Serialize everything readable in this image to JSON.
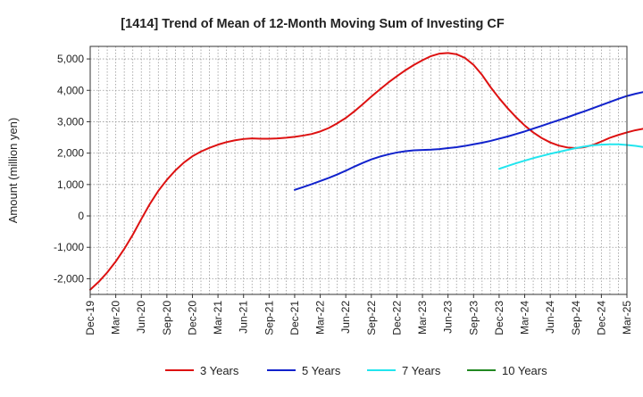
{
  "chart_data": {
    "type": "line",
    "title": "[1414]  Trend of Mean of 12-Month Moving Sum of Investing CF",
    "xlabel": "",
    "ylabel": "Amount (million yen)",
    "ylim": [
      -2500,
      5400
    ],
    "yticks": [
      -2000,
      -1000,
      0,
      1000,
      2000,
      3000,
      4000,
      5000
    ],
    "ytick_labels": [
      "-2,000",
      "-1,000",
      "0",
      "1,000",
      "2,000",
      "3,000",
      "4,000",
      "5,000"
    ],
    "x_tick_labels": [
      "Dec-19",
      "Mar-20",
      "Jun-20",
      "Sep-20",
      "Dec-20",
      "Mar-21",
      "Jun-21",
      "Sep-21",
      "Dec-21",
      "Mar-22",
      "Jun-22",
      "Sep-22",
      "Dec-22",
      "Mar-23",
      "Jun-23",
      "Sep-23",
      "Dec-23",
      "Mar-24",
      "Jun-24",
      "Sep-24",
      "Dec-24",
      "Mar-25"
    ],
    "grid": true,
    "legend_position": "bottom",
    "series": [
      {
        "name": "3 Years",
        "color": "#dd1111",
        "start_index": 0,
        "values": [
          -2350,
          -2100,
          -1800,
          -1450,
          -1050,
          -600,
          -100,
          380,
          800,
          1150,
          1450,
          1700,
          1900,
          2050,
          2170,
          2270,
          2350,
          2410,
          2450,
          2470,
          2460,
          2460,
          2470,
          2490,
          2520,
          2560,
          2610,
          2690,
          2800,
          2950,
          3120,
          3330,
          3560,
          3800,
          4030,
          4250,
          4450,
          4640,
          4810,
          4960,
          5090,
          5170,
          5190,
          5150,
          5030,
          4810,
          4490,
          4100,
          3750,
          3430,
          3140,
          2880,
          2660,
          2480,
          2340,
          2240,
          2180,
          2160,
          2190,
          2260,
          2370,
          2490,
          2580,
          2660,
          2730,
          2780,
          2820,
          2850,
          2870
        ]
      },
      {
        "name": "5 Years",
        "color": "#1122cc",
        "start_index": 24,
        "values": [
          830,
          920,
          1010,
          1110,
          1210,
          1320,
          1440,
          1570,
          1690,
          1800,
          1890,
          1960,
          2020,
          2060,
          2090,
          2100,
          2110,
          2130,
          2160,
          2190,
          2230,
          2280,
          2330,
          2390,
          2460,
          2530,
          2610,
          2690,
          2780,
          2870,
          2960,
          3050,
          3140,
          3240,
          3330,
          3430,
          3530,
          3630,
          3730,
          3820,
          3890,
          3950,
          3990,
          4020,
          4040
        ]
      },
      {
        "name": "7 Years",
        "color": "#22e5ee",
        "start_index": 48,
        "values": [
          1500,
          1590,
          1680,
          1760,
          1840,
          1910,
          1980,
          2040,
          2100,
          2160,
          2210,
          2250,
          2270,
          2280,
          2280,
          2260,
          2230,
          2190
        ]
      },
      {
        "name": "10 Years",
        "color": "#228822",
        "start_index": 0,
        "values": []
      }
    ]
  }
}
